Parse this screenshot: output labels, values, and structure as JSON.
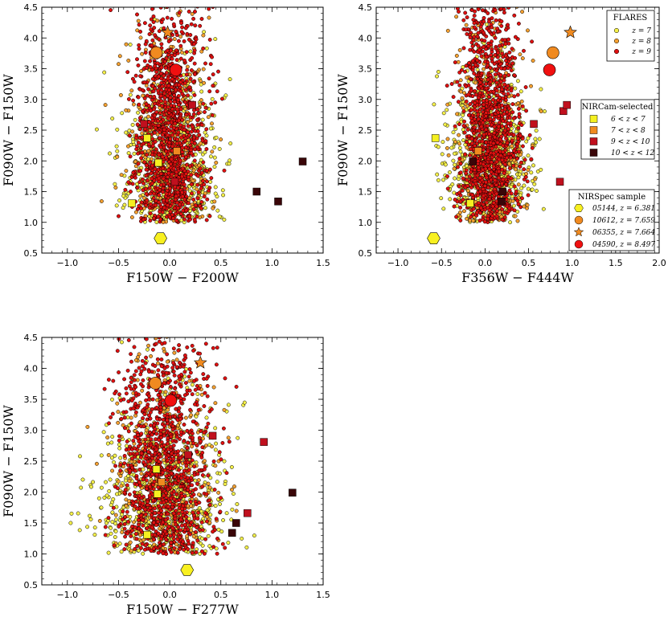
{
  "colors": {
    "z7": "#f5f04a",
    "z8": "#f5a030",
    "z9": "#e01010",
    "sel_6_7": "#f5f020",
    "sel_7_8": "#f08a20",
    "sel_9_10": "#c0101e",
    "sel_10_12": "#3a0608",
    "ns_05144": "#f8f020",
    "ns_10612": "#f08a20",
    "ns_06355": "#f08a20",
    "ns_04590": "#f01010"
  },
  "legends": {
    "flares": {
      "title": "FLARES",
      "entries": [
        "z = 7",
        "z = 8",
        "z = 9"
      ]
    },
    "nircam": {
      "title": "NIRCam-selected",
      "entries": [
        "6 < z < 7",
        "7 < z < 8",
        "9 < z < 10",
        "10 < z < 12"
      ]
    },
    "nirspec": {
      "title": "NIRSpec sample",
      "entries": [
        "05144,  z = 6.381",
        "10612,  z = 7.659",
        "06355,  z = 7.664",
        "04590,  z = 8.497"
      ]
    }
  },
  "chart_data": [
    {
      "type": "scatter",
      "xlabel": "F150W − F200W",
      "ylabel": "F090W − F150W",
      "xlim": [
        -1.25,
        1.5
      ],
      "ylim": [
        0.5,
        4.5
      ],
      "xticks": [
        "−1.0",
        "−0.5",
        "0.0",
        "0.5",
        "1.0",
        "1.5"
      ],
      "xtick_values": [
        -1.0,
        -0.5,
        0.0,
        0.5,
        1.0,
        1.5
      ],
      "yticks": [
        "0.5",
        "1.0",
        "1.5",
        "2.0",
        "2.5",
        "3.0",
        "3.5",
        "4.0",
        "4.5"
      ],
      "ytick_values": [
        0.5,
        1.0,
        1.5,
        2.0,
        2.5,
        3.0,
        3.5,
        4.0,
        4.5
      ],
      "flares_cloud": {
        "center_x": 0.0,
        "sigma_x": 0.2,
        "x_range": [
          -0.8,
          0.6
        ]
      },
      "nircam_selected": [
        {
          "x": -0.37,
          "y": 1.31,
          "group": "6 < z < 7"
        },
        {
          "x": -0.22,
          "y": 2.37,
          "group": "6 < z < 7"
        },
        {
          "x": -0.11,
          "y": 1.97,
          "group": "6 < z < 7"
        },
        {
          "x": 0.07,
          "y": 2.16,
          "group": "7 < z < 8"
        },
        {
          "x": -0.25,
          "y": 2.6,
          "group": "9 < z < 10"
        },
        {
          "x": 0.22,
          "y": 2.91,
          "group": "9 < z < 10"
        },
        {
          "x": 0.05,
          "y": 1.66,
          "group": "9 < z < 10"
        },
        {
          "x": 0.85,
          "y": 1.5,
          "group": "10 < z < 12"
        },
        {
          "x": 1.06,
          "y": 1.34,
          "group": "10 < z < 12"
        },
        {
          "x": 1.3,
          "y": 1.99,
          "group": "10 < z < 12"
        }
      ],
      "nirspec": [
        {
          "x": -0.09,
          "y": 0.74,
          "id": "05144",
          "shape": "hexagon"
        },
        {
          "x": -0.13,
          "y": 3.76,
          "id": "10612",
          "shape": "circle"
        },
        {
          "x": -0.02,
          "y": 4.09,
          "id": "06355",
          "shape": "star"
        },
        {
          "x": 0.06,
          "y": 3.48,
          "id": "04590",
          "shape": "circle"
        }
      ]
    },
    {
      "type": "scatter",
      "xlabel": "F356W − F444W",
      "ylabel": "F090W − F150W",
      "xlim": [
        -1.25,
        2.0
      ],
      "ylim": [
        0.5,
        4.5
      ],
      "xticks": [
        "−1.0",
        "−0.5",
        "0.0",
        "0.5",
        "1.0",
        "1.5",
        "2.0"
      ],
      "xtick_values": [
        -1.0,
        -0.5,
        0.0,
        0.5,
        1.0,
        1.5,
        2.0
      ],
      "yticks": [
        "0.5",
        "1.0",
        "1.5",
        "2.0",
        "2.5",
        "3.0",
        "3.5",
        "4.0",
        "4.5"
      ],
      "ytick_values": [
        0.5,
        1.0,
        1.5,
        2.0,
        2.5,
        3.0,
        3.5,
        4.0,
        4.5
      ],
      "flares_cloud": {
        "center_x": 0.05,
        "sigma_x": 0.2,
        "x_range": [
          -0.6,
          0.75
        ]
      },
      "nircam_selected": [
        {
          "x": -0.57,
          "y": 2.37,
          "group": "6 < z < 7"
        },
        {
          "x": -0.17,
          "y": 1.31,
          "group": "6 < z < 7"
        },
        {
          "x": -0.08,
          "y": 2.16,
          "group": "7 < z < 8"
        },
        {
          "x": 0.56,
          "y": 2.6,
          "group": "9 < z < 10"
        },
        {
          "x": 0.9,
          "y": 2.81,
          "group": "9 < z < 10"
        },
        {
          "x": 0.94,
          "y": 2.91,
          "group": "9 < z < 10"
        },
        {
          "x": 0.86,
          "y": 1.66,
          "group": "9 < z < 10"
        },
        {
          "x": -0.14,
          "y": 1.99,
          "group": "10 < z < 12"
        },
        {
          "x": 0.2,
          "y": 1.5,
          "group": "10 < z < 12"
        },
        {
          "x": 0.19,
          "y": 1.34,
          "group": "10 < z < 12"
        }
      ],
      "nirspec": [
        {
          "x": -0.59,
          "y": 0.74,
          "id": "05144",
          "shape": "hexagon"
        },
        {
          "x": 0.78,
          "y": 3.76,
          "id": "10612",
          "shape": "circle"
        },
        {
          "x": 0.98,
          "y": 4.09,
          "id": "06355",
          "shape": "star"
        },
        {
          "x": 0.74,
          "y": 3.48,
          "id": "04590",
          "shape": "circle"
        }
      ]
    },
    {
      "type": "scatter",
      "xlabel": "F150W − F277W",
      "ylabel": "F090W − F150W",
      "xlim": [
        -1.25,
        1.5
      ],
      "ylim": [
        0.5,
        4.5
      ],
      "xticks": [
        "−1.0",
        "−0.5",
        "0.0",
        "0.5",
        "1.0",
        "1.5"
      ],
      "xtick_values": [
        -1.0,
        -0.5,
        0.0,
        0.5,
        1.0,
        1.5
      ],
      "yticks": [
        "0.5",
        "1.0",
        "1.5",
        "2.0",
        "2.5",
        "3.0",
        "3.5",
        "4.0",
        "4.5"
      ],
      "ytick_values": [
        0.5,
        1.0,
        1.5,
        2.0,
        2.5,
        3.0,
        3.5,
        4.0,
        4.5
      ],
      "flares_cloud": {
        "center_x": -0.05,
        "sigma_x": 0.25,
        "x_range": [
          -1.0,
          1.0
        ]
      },
      "nircam_selected": [
        {
          "x": -0.22,
          "y": 1.31,
          "group": "6 < z < 7"
        },
        {
          "x": -0.13,
          "y": 2.37,
          "group": "6 < z < 7"
        },
        {
          "x": -0.12,
          "y": 1.97,
          "group": "6 < z < 7"
        },
        {
          "x": -0.08,
          "y": 2.16,
          "group": "7 < z < 8"
        },
        {
          "x": 0.18,
          "y": 2.6,
          "group": "9 < z < 10"
        },
        {
          "x": 0.42,
          "y": 2.91,
          "group": "9 < z < 10"
        },
        {
          "x": 0.92,
          "y": 2.81,
          "group": "9 < z < 10"
        },
        {
          "x": 0.76,
          "y": 1.66,
          "group": "9 < z < 10"
        },
        {
          "x": 1.2,
          "y": 1.99,
          "group": "10 < z < 12"
        },
        {
          "x": 0.65,
          "y": 1.5,
          "group": "10 < z < 12"
        },
        {
          "x": 0.61,
          "y": 1.34,
          "group": "10 < z < 12"
        }
      ],
      "nirspec": [
        {
          "x": 0.17,
          "y": 0.74,
          "id": "05144",
          "shape": "hexagon"
        },
        {
          "x": -0.14,
          "y": 3.76,
          "id": "10612",
          "shape": "circle"
        },
        {
          "x": 0.3,
          "y": 4.09,
          "id": "06355",
          "shape": "star"
        },
        {
          "x": 0.01,
          "y": 3.48,
          "id": "04590",
          "shape": "circle"
        }
      ]
    }
  ]
}
